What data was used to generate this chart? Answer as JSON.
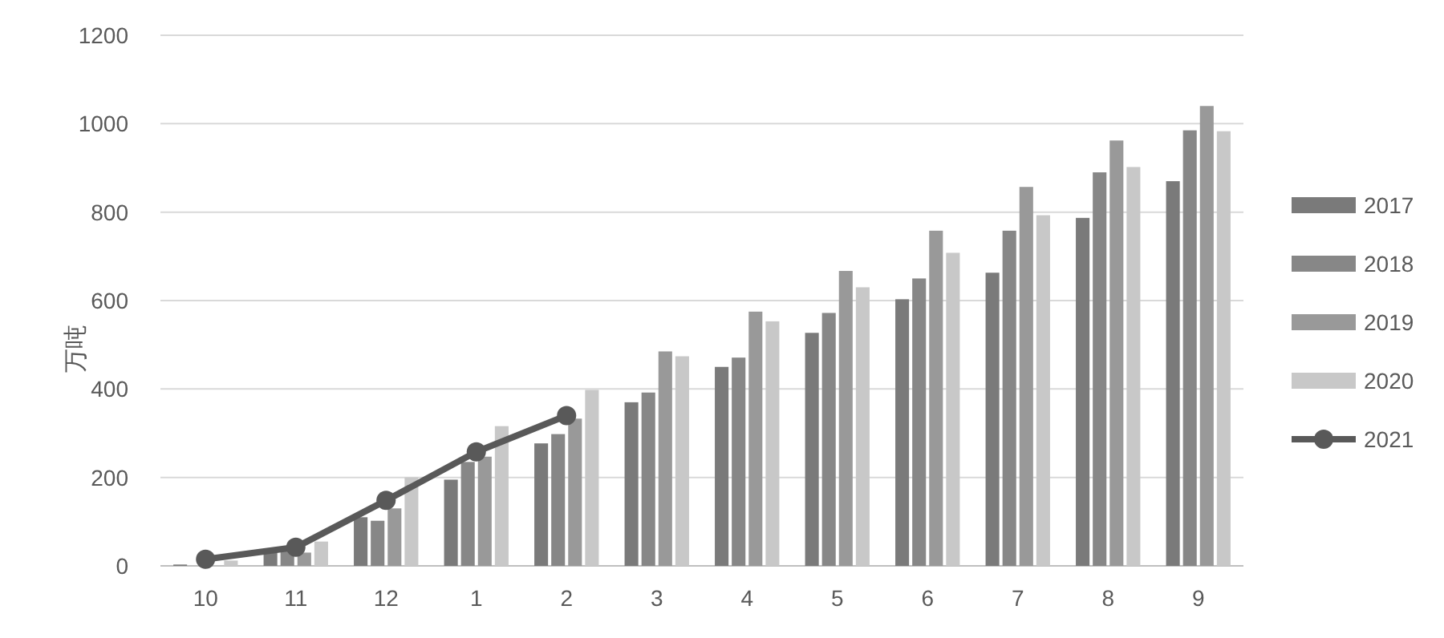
{
  "chart_data": {
    "type": "bar",
    "ylabel": "万吨",
    "categories": [
      "10",
      "11",
      "12",
      "1",
      "2",
      "3",
      "4",
      "5",
      "6",
      "7",
      "8",
      "9"
    ],
    "series": [
      {
        "name": "2017",
        "color": "#7a7a7a",
        "values": [
          3,
          35,
          110,
          195,
          277,
          370,
          450,
          527,
          603,
          663,
          787,
          870
        ]
      },
      {
        "name": "2018",
        "color": "#878787",
        "values": [
          null,
          38,
          102,
          235,
          298,
          392,
          471,
          572,
          650,
          758,
          890,
          985
        ]
      },
      {
        "name": "2019",
        "color": "#999999",
        "values": [
          null,
          30,
          130,
          247,
          333,
          485,
          575,
          667,
          758,
          857,
          962,
          1040
        ]
      },
      {
        "name": "2020",
        "color": "#c8c8c8",
        "values": [
          12,
          55,
          200,
          316,
          398,
          474,
          553,
          630,
          708,
          793,
          902,
          983
        ]
      },
      {
        "name": "2021",
        "color": "#595959",
        "type": "line",
        "marker": "circle",
        "values": [
          15,
          42,
          148,
          258,
          340,
          null,
          null,
          null,
          null,
          null,
          null,
          null
        ]
      }
    ],
    "ylim": [
      0,
      1200
    ],
    "yticks": [
      0,
      200,
      400,
      600,
      800,
      1000,
      1200
    ],
    "grid": "y",
    "legend": "right"
  }
}
